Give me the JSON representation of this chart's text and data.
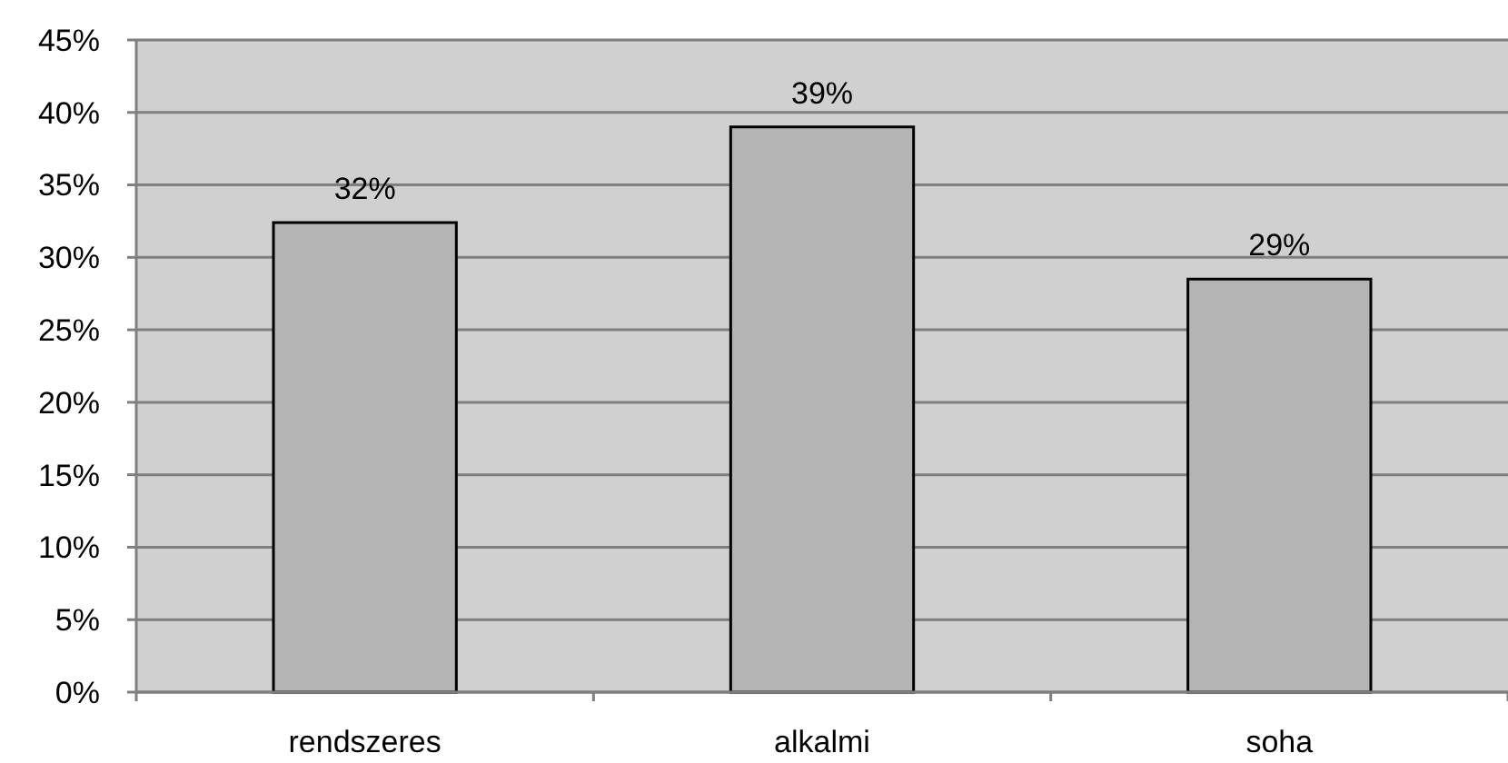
{
  "chart_data": {
    "type": "bar",
    "categories": [
      "rendszeres",
      "alkalmi",
      "soha"
    ],
    "values": [
      32.4,
      39,
      28.5
    ],
    "value_labels": [
      "32%",
      "39%",
      "29%"
    ],
    "color": "#b4b4b4",
    "ylim": [
      0,
      45
    ],
    "yticks": [
      {
        "value": 0,
        "label": "0%"
      },
      {
        "value": 5,
        "label": "5%"
      },
      {
        "value": 10,
        "label": "10%"
      },
      {
        "value": 15,
        "label": "15%"
      },
      {
        "value": 20,
        "label": "20%"
      },
      {
        "value": 25,
        "label": "25%"
      },
      {
        "value": 30,
        "label": "30%"
      },
      {
        "value": 35,
        "label": "35%"
      },
      {
        "value": 40,
        "label": "40%"
      },
      {
        "value": 45,
        "label": "45%"
      }
    ],
    "grid": "y"
  }
}
